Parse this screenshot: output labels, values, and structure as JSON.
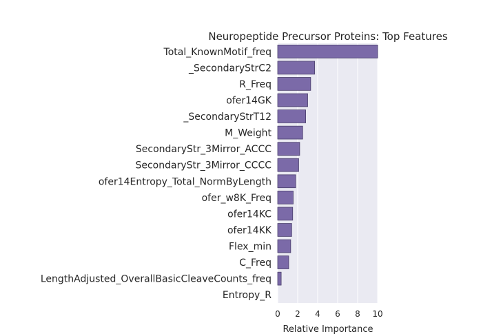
{
  "chart_data": {
    "type": "bar",
    "orientation": "horizontal",
    "title": "Neuropeptide Precursor Proteins: Top Features",
    "xlabel": "Relative Importance",
    "ylabel": "",
    "xlim": [
      0,
      10
    ],
    "xticks": [
      "0",
      "2",
      "4",
      "6",
      "8",
      "10"
    ],
    "grid": true,
    "bar_color": "#7b6aa8",
    "background_color": "#eaeaf2",
    "categories": [
      "Total_KnownMotif_freq",
      "_SecondaryStrC2",
      "R_Freq",
      "ofer14GK",
      "_SecondaryStrT12",
      "M_Weight",
      "SecondaryStr_3Mirror_ACCC",
      "SecondaryStr_3Mirror_CCCC",
      "ofer14Entropy_Total_NormByLength",
      "ofer_w8K_Freq",
      "ofer14KC",
      "ofer14KK",
      "Flex_min",
      "C_Freq",
      "LengthAdjusted_OverallBasicCleaveCounts_freq",
      "Entropy_R"
    ],
    "values": [
      10.0,
      3.7,
      3.3,
      3.0,
      2.8,
      2.5,
      2.2,
      2.1,
      1.8,
      1.55,
      1.5,
      1.4,
      1.3,
      1.1,
      0.35,
      0.0
    ]
  }
}
